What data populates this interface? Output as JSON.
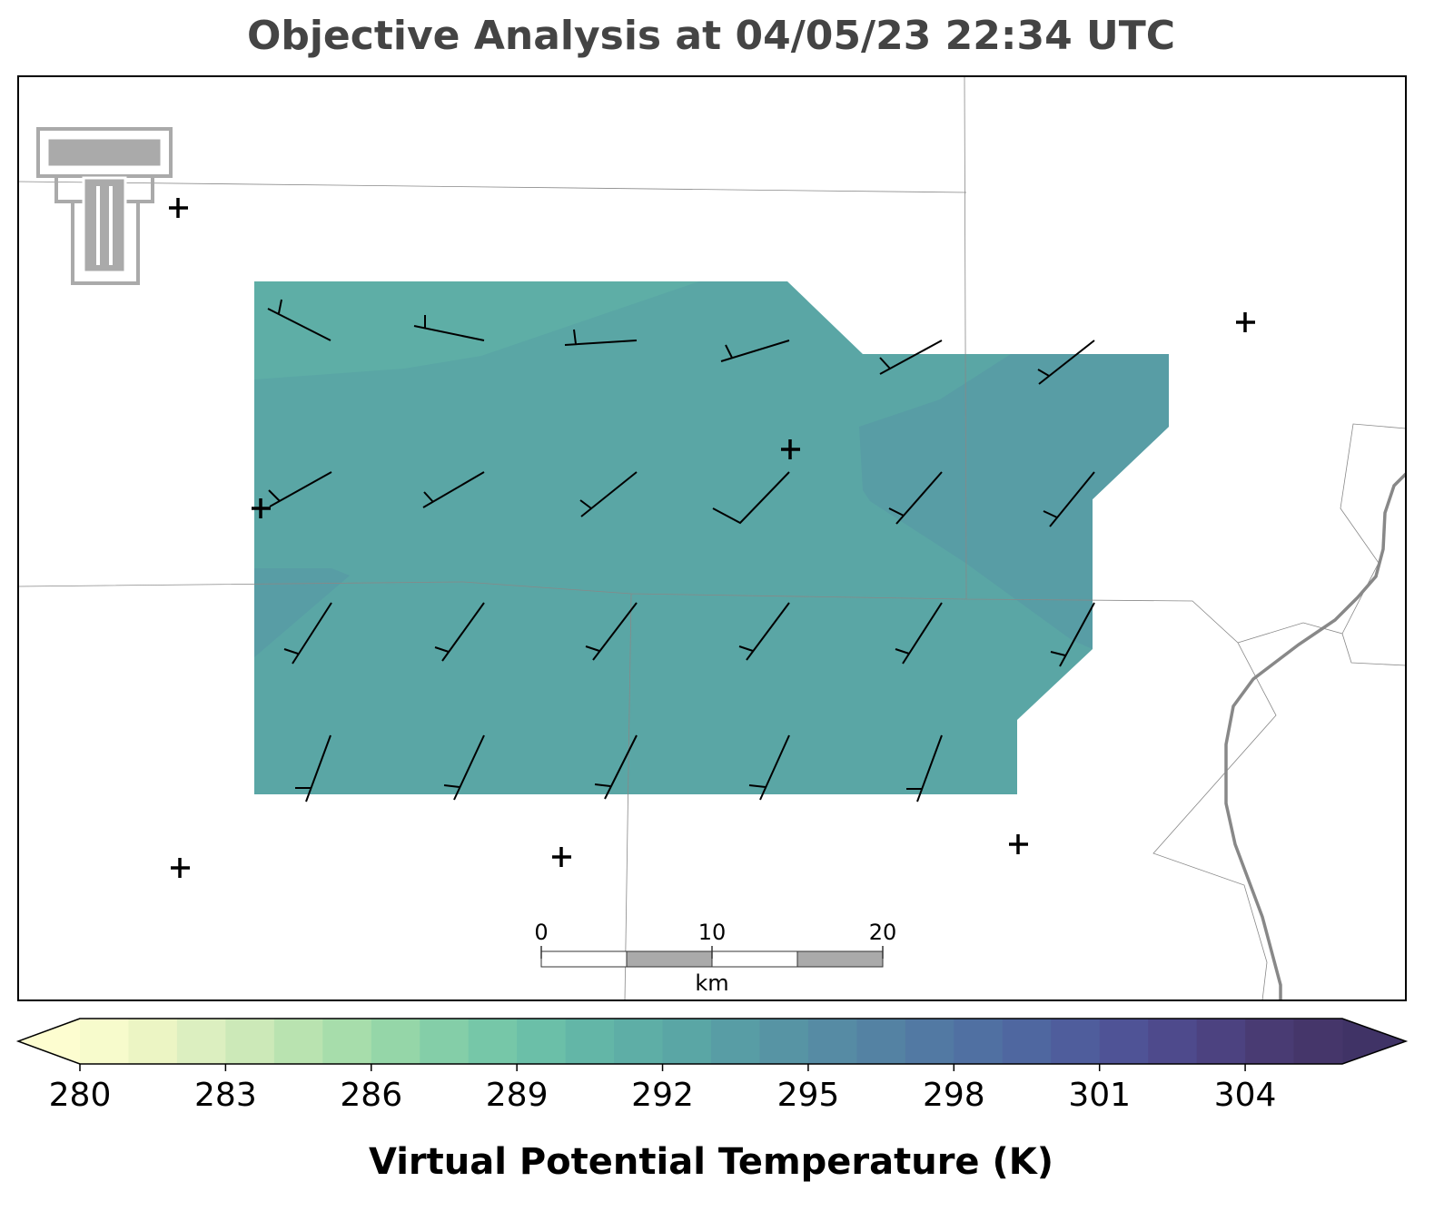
{
  "chart_data": {
    "type": "objective-analysis-map",
    "title": "Objective Analysis at 04/05/23 22:34 UTC",
    "scale_bar": {
      "ticks": [
        0,
        10,
        20
      ],
      "unit": "km"
    },
    "analysis_levels": [
      292,
      291,
      293,
      293
    ],
    "colorbar": {
      "label": "Virtual Potential Temperature (K)",
      "lim": [
        280,
        306
      ],
      "ticks": [
        280,
        283,
        286,
        289,
        292,
        295,
        298,
        301,
        304
      ],
      "colors": [
        "#f7fbcc",
        "#ecf5c4",
        "#dcefc0",
        "#cce9b8",
        "#b9e3b0",
        "#a7ddab",
        "#95d6a8",
        "#84cea8",
        "#76c7a8",
        "#6bbfa8",
        "#63b6a7",
        "#5eaea6",
        "#5aa6a5",
        "#589da5",
        "#5794a4",
        "#568ba4",
        "#5482a3",
        "#5279a3",
        "#5070a2",
        "#4f67a0",
        "#4f5d9c",
        "#4f5396",
        "#4e4a8c",
        "#4c4280",
        "#493b73",
        "#45366a"
      ],
      "under_color": "#fdfdd0",
      "over_color": "#403366"
    }
  }
}
